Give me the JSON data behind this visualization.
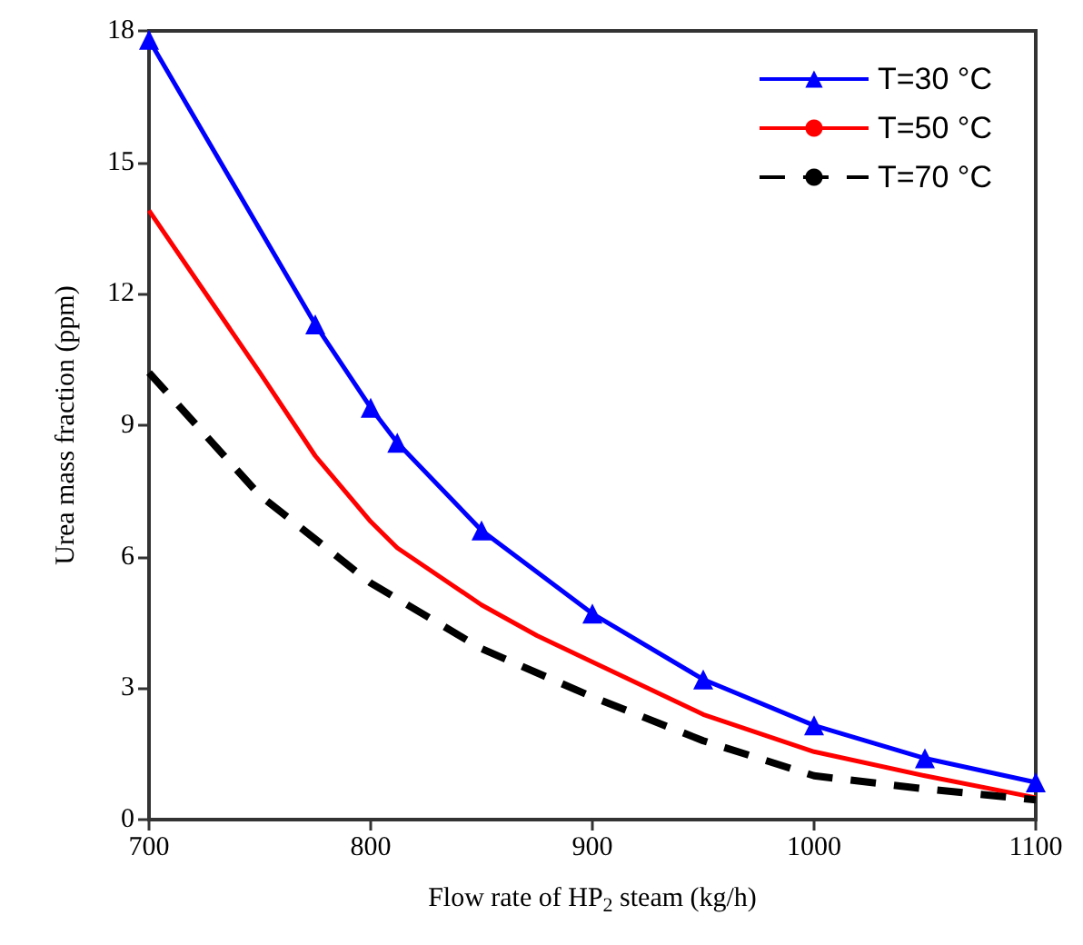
{
  "chart_data": {
    "type": "line",
    "xlabel": "Flow rate of HP$_{2}$ steam (kg/h)",
    "ylabel": "Urea mass fraction (ppm)",
    "xlim": [
      700,
      1100
    ],
    "xticks": [
      700,
      800,
      900,
      1000,
      1100
    ],
    "ylim": [
      0,
      18
    ],
    "yticks": [
      0,
      3,
      6,
      9,
      12,
      15,
      18
    ],
    "grid": false,
    "legend": "top right",
    "series": [
      {
        "name": "T=30 °C",
        "color": "#0000ff",
        "marker": "triangle",
        "line_style": "solid",
        "x": [
          700,
          775,
          800,
          812,
          850,
          900,
          950,
          1000,
          1050,
          1100
        ],
        "values": [
          17.8,
          11.3,
          9.4,
          8.6,
          6.6,
          4.7,
          3.2,
          2.15,
          1.4,
          0.85
        ]
      },
      {
        "name": "T=50 °C",
        "color": "#ff0000",
        "marker": "none",
        "line_style": "solid",
        "x": [
          700,
          750,
          775,
          800,
          812,
          850,
          875,
          900,
          950,
          1000,
          1050,
          1100
        ],
        "values": [
          13.9,
          10.2,
          8.3,
          6.8,
          6.2,
          4.9,
          4.2,
          3.6,
          2.4,
          1.55,
          1.0,
          0.5
        ]
      },
      {
        "name": "T=70 °C",
        "color": "#000000",
        "marker": "none",
        "line_style": "dashed",
        "x": [
          700,
          750,
          800,
          850,
          900,
          950,
          1000,
          1050,
          1100
        ],
        "values": [
          10.2,
          7.4,
          5.4,
          3.9,
          2.8,
          1.8,
          1.0,
          0.7,
          0.45
        ]
      }
    ]
  }
}
